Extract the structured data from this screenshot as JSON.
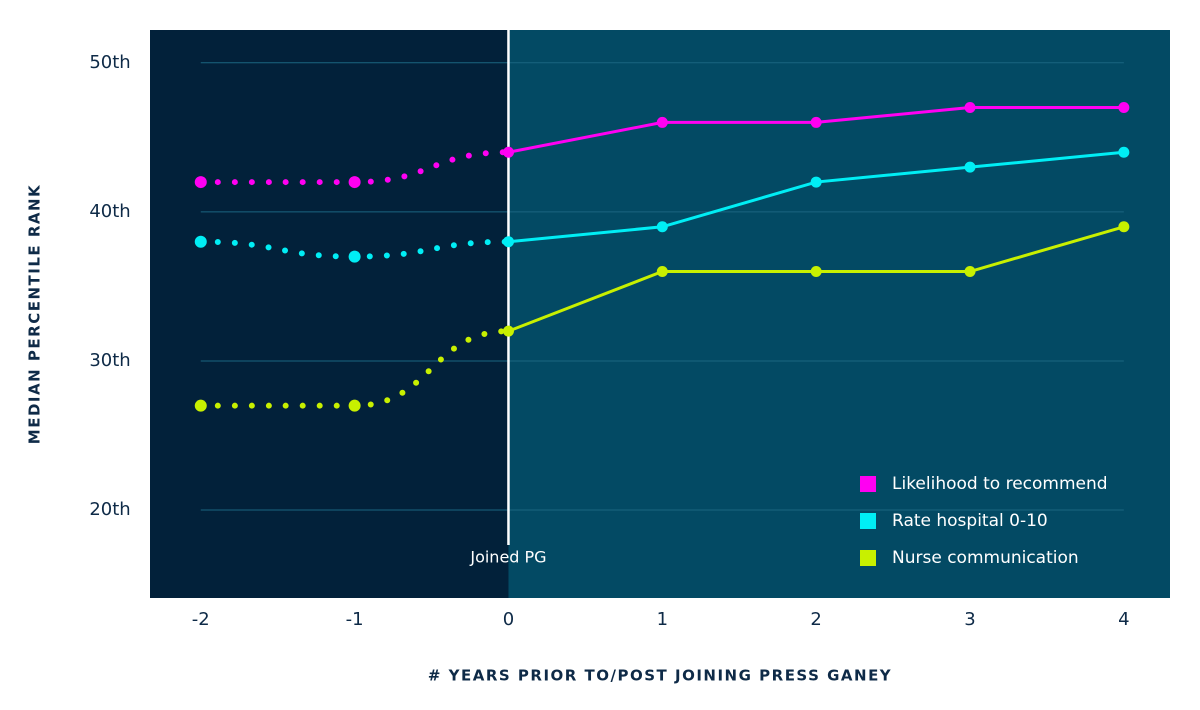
{
  "chart_data": {
    "type": "line",
    "x": [
      -2,
      -1,
      0,
      1,
      2,
      3,
      4
    ],
    "series": [
      {
        "name": "Likelihood to recommend",
        "color": "#ff00f2",
        "values": [
          42,
          42,
          44,
          46,
          46,
          47,
          47
        ]
      },
      {
        "name": "Rate hospital 0-10",
        "color": "#00eef5",
        "values": [
          38,
          37,
          38,
          39,
          42,
          43,
          44
        ]
      },
      {
        "name": "Nurse communication",
        "color": "#c8f000",
        "values": [
          27,
          27,
          32,
          36,
          36,
          36,
          39
        ]
      }
    ],
    "xlim": [
      -2.33,
      4.3
    ],
    "xticks": [
      {
        "value": -2,
        "label": "-2"
      },
      {
        "value": -1,
        "label": "-1"
      },
      0,
      1,
      2,
      3,
      4
    ],
    "ylim": [
      14.1,
      52.2
    ],
    "yticks": [
      {
        "value": 20,
        "label": "20th"
      },
      {
        "value": 30,
        "label": "30th"
      },
      {
        "value": 40,
        "label": "40th"
      },
      {
        "value": 50,
        "label": "50th"
      }
    ],
    "xlabel": "# YEARS PRIOR TO/POST JOINING PRESS GANEY",
    "ylabel": "MEDIAN PERCENTILE RANK",
    "annotation": {
      "text": "Joined PG",
      "x": 0
    },
    "grid": true,
    "legend": "lower right"
  }
}
